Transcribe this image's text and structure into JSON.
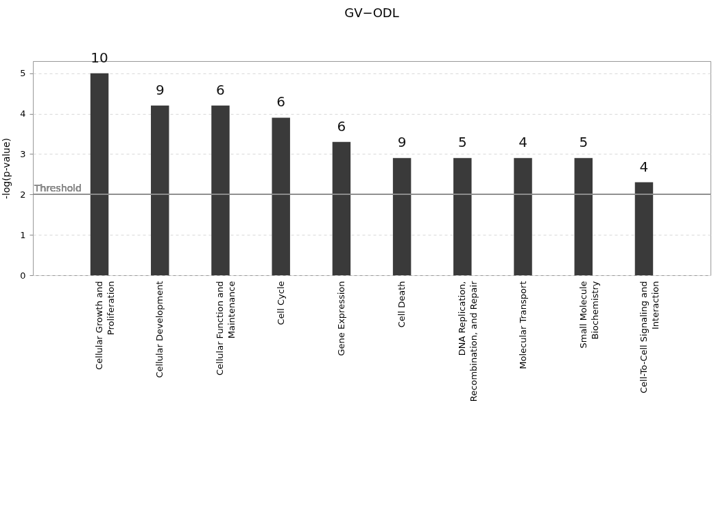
{
  "chart_data": {
    "type": "bar",
    "title": "GV−ODL",
    "ylabel": "-log(p-value)",
    "categories": [
      "Cellular Growth and Proliferation",
      "Cellular Development",
      "Cellular Function and Maintenance",
      "Cell Cycle",
      "Gene Expression",
      "Cell Death",
      "DNA Replication, Recombination, and Repair",
      "Molecular Transport",
      "Small Molecule Biochemistry",
      "Cell-To-Cell Signaling and Interaction"
    ],
    "values": [
      5.0,
      4.2,
      4.2,
      3.9,
      3.3,
      2.9,
      2.9,
      2.9,
      2.9,
      2.3
    ],
    "annotations": [
      {
        "text": "10",
        "x": "Cellular Growth and Proliferation",
        "y": 5.0
      },
      {
        "text": "9",
        "x": "Cellular Development",
        "y": 4.2
      },
      {
        "text": "6",
        "x": "Cellular Function and Maintenance",
        "y": 4.2
      },
      {
        "text": "6",
        "x": "Cell Cycle",
        "y": 3.9
      },
      {
        "text": "6",
        "x": "Gene Expression",
        "y": 3.3
      },
      {
        "text": "9",
        "x": "Cell Death",
        "y": 2.9
      },
      {
        "text": "5",
        "x": "DNA Replication, Recombination, and Repair",
        "y": 2.9
      },
      {
        "text": "4",
        "x": "Molecular Transport",
        "y": 2.9
      },
      {
        "text": "5",
        "x": "Small Molecule Biochemistry",
        "y": 2.9
      },
      {
        "text": "4",
        "x": "Cell-To-Cell Signaling and Interaction",
        "y": 2.3
      }
    ],
    "color": "#3a3a3a",
    "ylim": [
      0,
      5.3
    ],
    "yticks": [
      0,
      1,
      2,
      3,
      4,
      5
    ],
    "grid": "y",
    "ref_lines": [
      {
        "axis": "y",
        "value": 2,
        "label": "Threshold",
        "color": "#8c8c8c"
      }
    ]
  }
}
